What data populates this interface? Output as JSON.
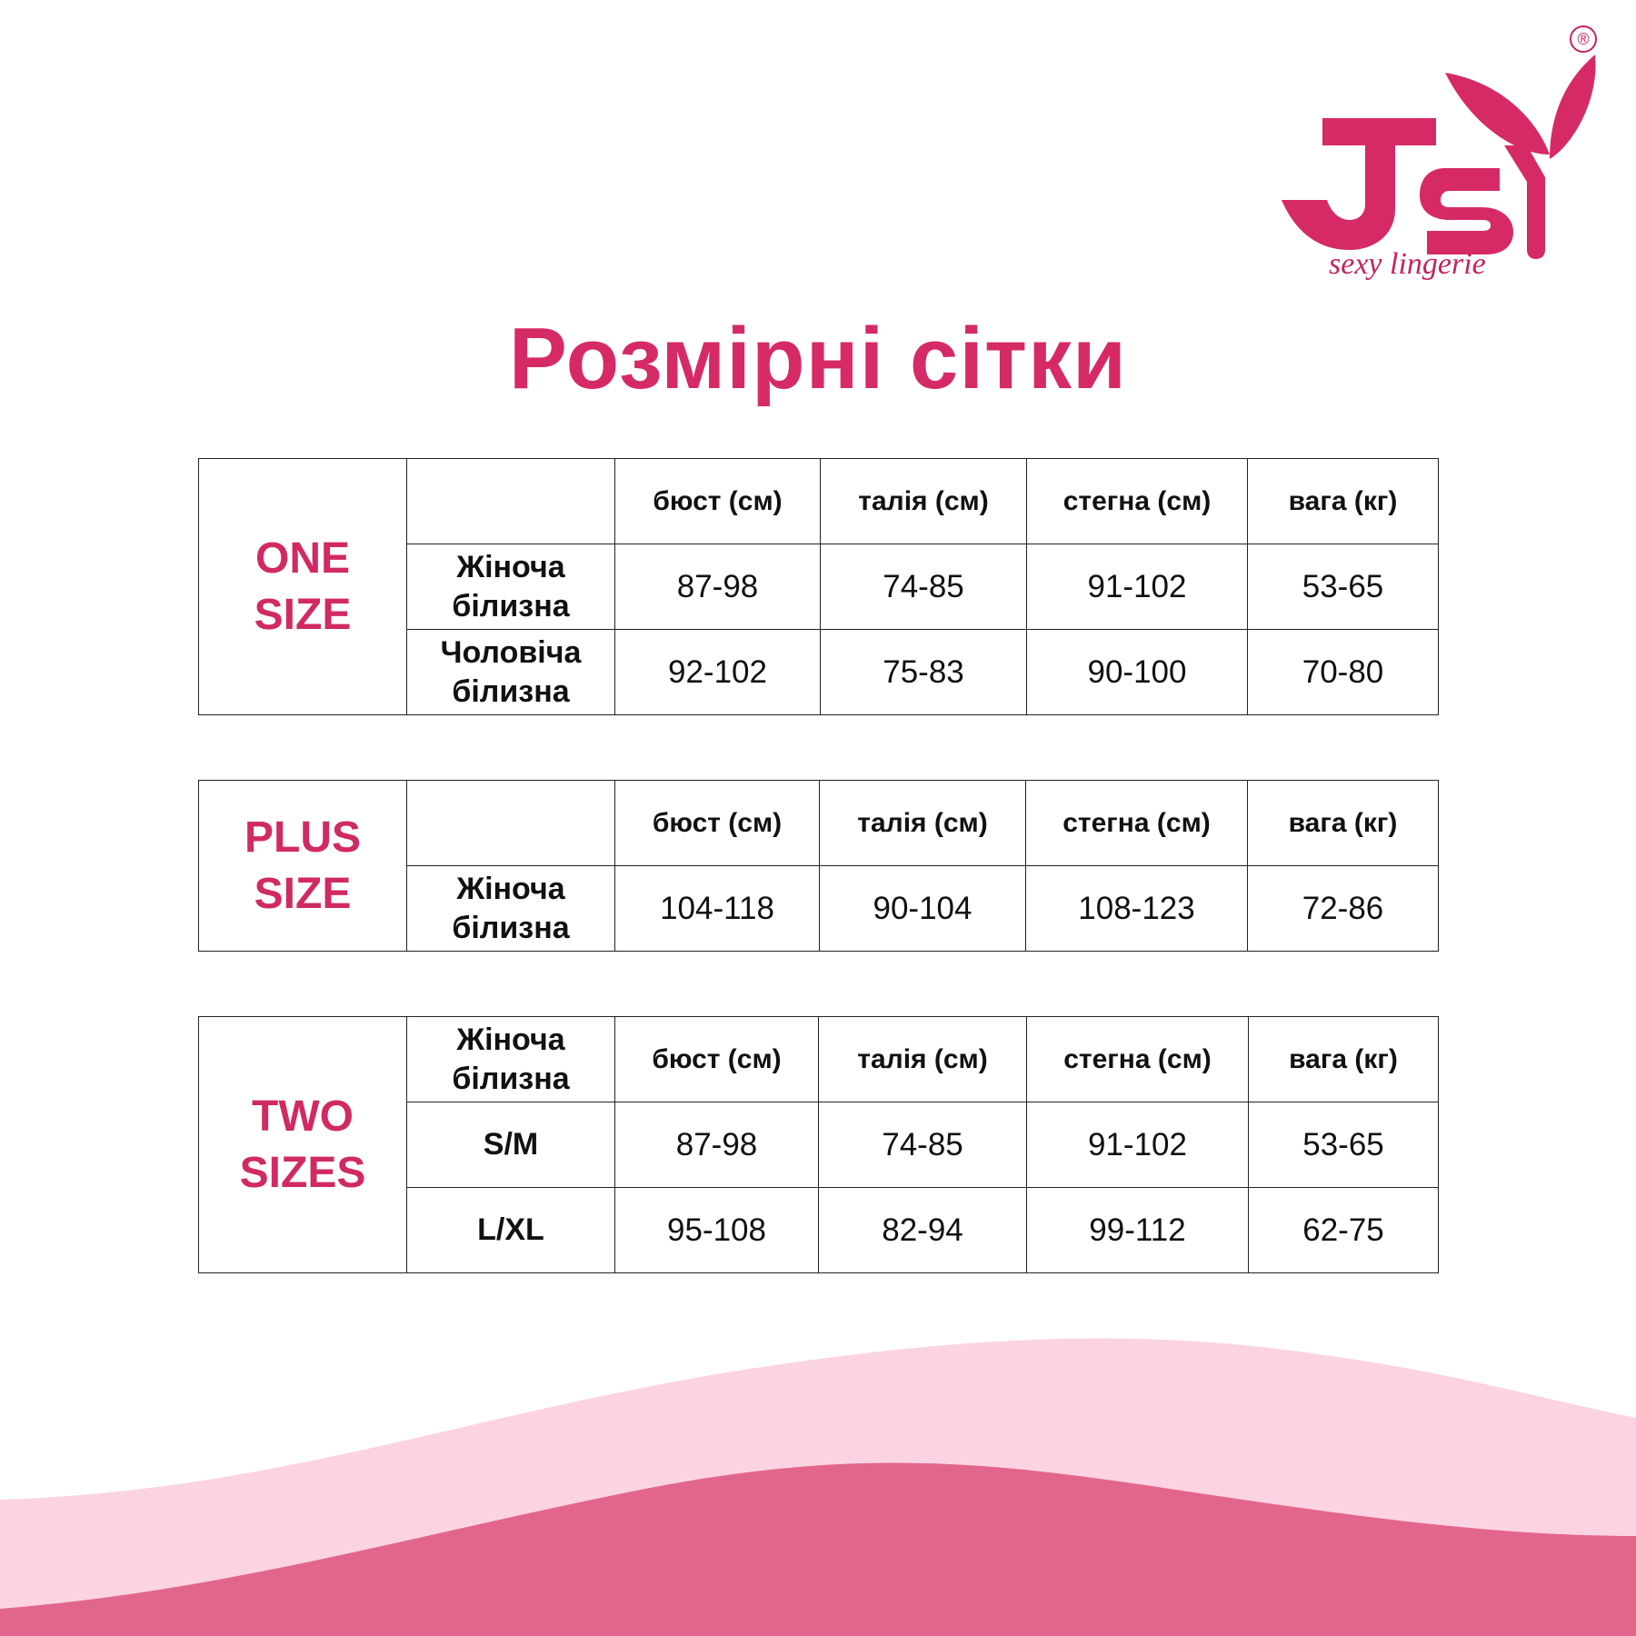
{
  "brand": {
    "logo_text": "JSY",
    "tagline": "sexy lingerie",
    "registered_mark": "®",
    "color": "#d62a66"
  },
  "title": "Розмірні сітки",
  "columns": [
    "бюст (см)",
    "талія (см)",
    "стегна (см)",
    "вага (кг)"
  ],
  "tables": [
    {
      "group_line1": "ONE",
      "group_line2": "SIZE",
      "header_label": "",
      "rows": [
        {
          "label1": "Жіноча",
          "label2": "білизна",
          "values": [
            "87-98",
            "74-85",
            "91-102",
            "53-65"
          ]
        },
        {
          "label1": "Чоловіча",
          "label2": "білизна",
          "values": [
            "92-102",
            "75-83",
            "90-100",
            "70-80"
          ]
        }
      ]
    },
    {
      "group_line1": "PLUS",
      "group_line2": "SIZE",
      "header_label": "",
      "rows": [
        {
          "label1": "Жіноча",
          "label2": "білизна",
          "values": [
            "104-118",
            "90-104",
            "108-123",
            "72-86"
          ]
        }
      ]
    },
    {
      "group_line1": "TWO",
      "group_line2": "SIZES",
      "header_label1": "Жіноча",
      "header_label2": "білизна",
      "rows": [
        {
          "label1": "S/M",
          "values": [
            "87-98",
            "74-85",
            "91-102",
            "53-65"
          ]
        },
        {
          "label1": "L/XL",
          "values": [
            "95-108",
            "82-94",
            "99-112",
            "62-75"
          ]
        }
      ]
    }
  ],
  "colors": {
    "accent": "#d62a66",
    "wave_light": "#fcd3e3",
    "wave_dark": "#e2668b"
  }
}
